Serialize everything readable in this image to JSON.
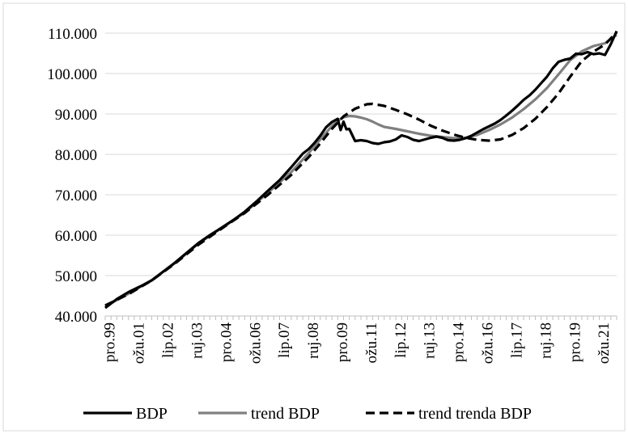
{
  "chart_data": {
    "type": "line",
    "title": "",
    "xlabel": "",
    "ylabel": "",
    "ylim": [
      40000,
      110000
    ],
    "y_ticks": [
      "40.000",
      "50.000",
      "60.000",
      "70.000",
      "80.000",
      "90.000",
      "100.000",
      "110.000"
    ],
    "y_tick_values": [
      40000,
      50000,
      60000,
      70000,
      80000,
      90000,
      100000,
      110000
    ],
    "x_ticks": [
      "pro.99",
      "ožu.01",
      "lip.02",
      "ruj.03",
      "pro.04",
      "ožu.06",
      "lip.07",
      "ruj.08",
      "pro.09",
      "ožu.11",
      "lip.12",
      "ruj.13",
      "pro.14",
      "ožu.16",
      "lip.17",
      "ruj.18",
      "pro.19",
      "ožu.21"
    ],
    "grid": "horizontal",
    "legend": "bottom",
    "series": [
      {
        "name": "BDP",
        "color": "#000000",
        "style": "solid",
        "points": [
          [
            0,
            42000
          ],
          [
            2,
            44200
          ],
          [
            4,
            45900
          ],
          [
            6,
            47300
          ],
          [
            8,
            48800
          ],
          [
            10,
            51000
          ],
          [
            12,
            53200
          ],
          [
            14,
            55600
          ],
          [
            16,
            58000
          ],
          [
            18,
            60000
          ],
          [
            20,
            61800
          ],
          [
            22,
            63700
          ],
          [
            24,
            65800
          ],
          [
            26,
            68300
          ],
          [
            28,
            71000
          ],
          [
            30,
            73600
          ],
          [
            32,
            76800
          ],
          [
            34,
            80200
          ],
          [
            35,
            81300
          ],
          [
            36,
            82800
          ],
          [
            37,
            84600
          ],
          [
            38,
            86700
          ],
          [
            39,
            88000
          ],
          [
            40,
            88800
          ],
          [
            40.5,
            86000
          ],
          [
            41,
            88100
          ],
          [
            41.5,
            86200
          ],
          [
            42,
            86300
          ],
          [
            43,
            83300
          ],
          [
            44,
            83500
          ],
          [
            45,
            83300
          ],
          [
            46,
            82800
          ],
          [
            47,
            82600
          ],
          [
            48,
            83000
          ],
          [
            49,
            83200
          ],
          [
            50,
            83700
          ],
          [
            51,
            84700
          ],
          [
            52,
            84300
          ],
          [
            53,
            83600
          ],
          [
            54,
            83300
          ],
          [
            55,
            83700
          ],
          [
            56,
            84100
          ],
          [
            57,
            84400
          ],
          [
            58,
            84100
          ],
          [
            59,
            83500
          ],
          [
            60,
            83400
          ],
          [
            61,
            83600
          ],
          [
            62,
            84000
          ],
          [
            63,
            84600
          ],
          [
            64,
            85400
          ],
          [
            65,
            86200
          ],
          [
            66,
            86900
          ],
          [
            67,
            87600
          ],
          [
            68,
            88500
          ],
          [
            69,
            89600
          ],
          [
            70,
            90800
          ],
          [
            71,
            92100
          ],
          [
            72,
            93500
          ],
          [
            73,
            94600
          ],
          [
            74,
            96000
          ],
          [
            75,
            97600
          ],
          [
            76,
            99200
          ],
          [
            77,
            101300
          ],
          [
            78,
            102900
          ],
          [
            79,
            103400
          ],
          [
            80,
            103700
          ],
          [
            81,
            104900
          ],
          [
            82,
            104800
          ],
          [
            83,
            105300
          ],
          [
            84,
            104800
          ],
          [
            85,
            105000
          ],
          [
            86,
            104600
          ],
          [
            87,
            107300
          ],
          [
            88,
            110500
          ]
        ]
      },
      {
        "name": "trend BDP",
        "color": "#808080",
        "style": "solid",
        "points": [
          [
            0,
            42400
          ],
          [
            4,
            45500
          ],
          [
            8,
            48900
          ],
          [
            12,
            53100
          ],
          [
            16,
            57900
          ],
          [
            20,
            61800
          ],
          [
            24,
            65600
          ],
          [
            28,
            70500
          ],
          [
            32,
            75600
          ],
          [
            35,
            80300
          ],
          [
            37,
            83700
          ],
          [
            39,
            87000
          ],
          [
            40,
            88300
          ],
          [
            41,
            89200
          ],
          [
            42,
            89500
          ],
          [
            43,
            89400
          ],
          [
            44,
            89100
          ],
          [
            45,
            88700
          ],
          [
            46,
            88100
          ],
          [
            47,
            87400
          ],
          [
            48,
            86800
          ],
          [
            50,
            86300
          ],
          [
            52,
            85700
          ],
          [
            54,
            85100
          ],
          [
            56,
            84600
          ],
          [
            58,
            84300
          ],
          [
            60,
            84000
          ],
          [
            62,
            84100
          ],
          [
            64,
            84800
          ],
          [
            66,
            86000
          ],
          [
            68,
            87400
          ],
          [
            70,
            89100
          ],
          [
            72,
            91200
          ],
          [
            74,
            93600
          ],
          [
            76,
            96400
          ],
          [
            78,
            99800
          ],
          [
            80,
            103300
          ],
          [
            82,
            105500
          ],
          [
            84,
            106800
          ],
          [
            86,
            107500
          ],
          [
            88,
            109600
          ]
        ]
      },
      {
        "name": "trend trenda BDP",
        "color": "#000000",
        "style": "dashed",
        "points": [
          [
            0,
            42600
          ],
          [
            4,
            45400
          ],
          [
            8,
            48800
          ],
          [
            12,
            53000
          ],
          [
            16,
            57600
          ],
          [
            20,
            61600
          ],
          [
            24,
            65500
          ],
          [
            28,
            70000
          ],
          [
            32,
            74900
          ],
          [
            35,
            79300
          ],
          [
            37,
            82700
          ],
          [
            39,
            86300
          ],
          [
            41,
            89400
          ],
          [
            43,
            91300
          ],
          [
            45,
            92400
          ],
          [
            46,
            92500
          ],
          [
            48,
            92000
          ],
          [
            50,
            91000
          ],
          [
            52,
            89900
          ],
          [
            54,
            88600
          ],
          [
            56,
            87100
          ],
          [
            58,
            85900
          ],
          [
            60,
            84900
          ],
          [
            62,
            84100
          ],
          [
            64,
            83600
          ],
          [
            66,
            83400
          ],
          [
            68,
            83700
          ],
          [
            70,
            84800
          ],
          [
            72,
            86500
          ],
          [
            74,
            88800
          ],
          [
            76,
            91700
          ],
          [
            78,
            95100
          ],
          [
            80,
            99200
          ],
          [
            82,
            103100
          ],
          [
            84,
            105400
          ],
          [
            86,
            107200
          ],
          [
            88,
            110200
          ]
        ]
      }
    ]
  }
}
